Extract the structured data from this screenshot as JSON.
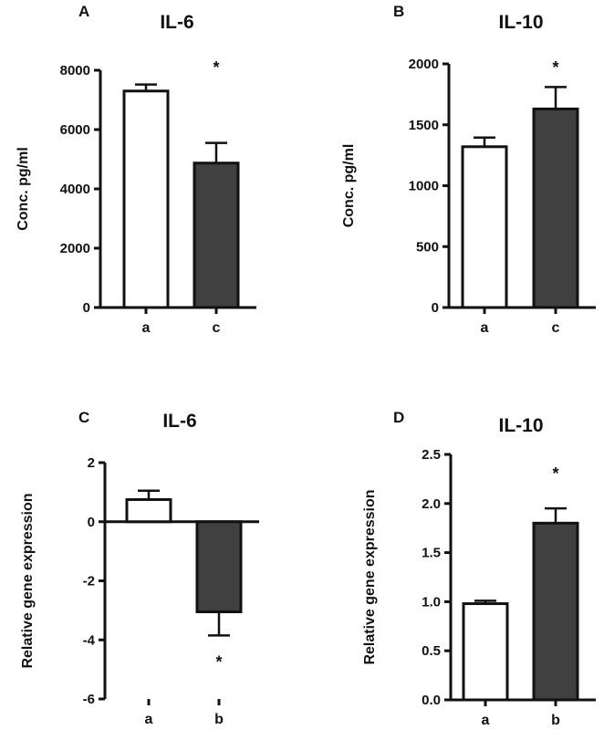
{
  "chart_data": [
    {
      "panel": "A",
      "type": "bar",
      "title": "IL-6",
      "ylabel": "Conc. pg/ml",
      "xlabel": "",
      "categories": [
        "a",
        "c"
      ],
      "values": [
        7300,
        4870
      ],
      "errors": [
        220,
        680
      ],
      "fills": [
        "#ffffff",
        "#404040"
      ],
      "ylim": [
        0,
        8000
      ],
      "yticks": [
        0,
        2000,
        4000,
        6000,
        8000
      ],
      "ytick_labels": [
        "0",
        "2000",
        "4000",
        "6000",
        "8000"
      ],
      "significance": "*"
    },
    {
      "panel": "B",
      "type": "bar",
      "title": "IL-10",
      "ylabel": "Conc. pg/ml",
      "xlabel": "",
      "categories": [
        "a",
        "c"
      ],
      "values": [
        1320,
        1630
      ],
      "errors": [
        75,
        180
      ],
      "fills": [
        "#ffffff",
        "#404040"
      ],
      "ylim": [
        0,
        2000
      ],
      "yticks": [
        0,
        500,
        1000,
        1500,
        2000
      ],
      "ytick_labels": [
        "0",
        "500",
        "1000",
        "1500",
        "2000"
      ],
      "significance": "*"
    },
    {
      "panel": "C",
      "type": "bar",
      "title": "IL-6",
      "ylabel": "Relative gene expression",
      "xlabel": "",
      "categories": [
        "a",
        "b"
      ],
      "values": [
        0.75,
        -3.05
      ],
      "errors": [
        0.3,
        0.8
      ],
      "fills": [
        "#ffffff",
        "#404040"
      ],
      "ylim": [
        -6,
        2
      ],
      "yticks": [
        -6,
        -4,
        -2,
        0,
        2
      ],
      "ytick_labels": [
        "-6",
        "-4",
        "-2",
        "0",
        "2"
      ],
      "significance": "*"
    },
    {
      "panel": "D",
      "type": "bar",
      "title": "IL-10",
      "ylabel": "Relative gene expression",
      "xlabel": "",
      "categories": [
        "a",
        "b"
      ],
      "values": [
        0.98,
        1.8
      ],
      "errors": [
        0.03,
        0.15
      ],
      "fills": [
        "#ffffff",
        "#404040"
      ],
      "ylim": [
        0,
        2.5
      ],
      "yticks": [
        0,
        0.5,
        1.0,
        1.5,
        2.0,
        2.5
      ],
      "ytick_labels": [
        "0.0",
        "0.5",
        "1.0",
        "1.5",
        "2.0",
        "2.5"
      ],
      "significance": "*"
    }
  ]
}
